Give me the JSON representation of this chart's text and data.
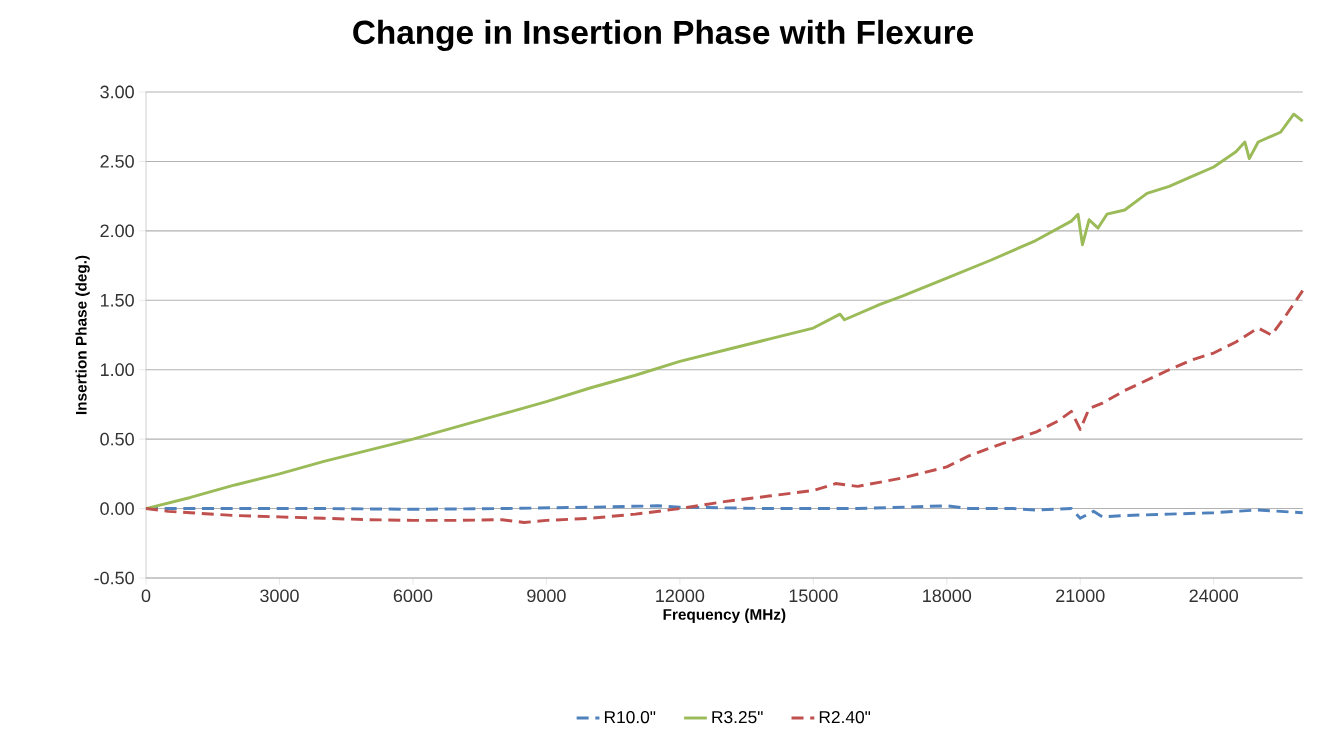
{
  "chart_data": {
    "type": "line",
    "title": "Change in Insertion Phase with Flexure",
    "xlabel": "Frequency (MHz)",
    "ylabel": "Insertion Phase (deg.)",
    "xlim": [
      0,
      26000
    ],
    "xticks": [
      0,
      3000,
      6000,
      9000,
      12000,
      15000,
      18000,
      21000,
      24000
    ],
    "ylim": [
      -0.5,
      3.0
    ],
    "yticks": [
      {
        "value": -0.5,
        "label": "-0.50"
      },
      {
        "value": 0,
        "label": "0.00"
      },
      {
        "value": 0.5,
        "label": "0.50"
      },
      {
        "value": 1.0,
        "label": "1.00"
      },
      {
        "value": 1.5,
        "label": "1.50"
      },
      {
        "value": 2.0,
        "label": "2.00"
      },
      {
        "value": 2.5,
        "label": "2.50"
      },
      {
        "value": 3.0,
        "label": "3.00"
      }
    ],
    "grid": "y",
    "legend": "bottom",
    "series": [
      {
        "name": "R10.0\"",
        "color": "#4f81bd",
        "line_style": "dashed",
        "x": [
          0,
          2000,
          4000,
          6000,
          8000,
          10000,
          11500,
          12000,
          14000,
          16000,
          18000,
          18500,
          19500,
          20000,
          20800,
          21000,
          21300,
          21500,
          22000,
          23000,
          24000,
          25000,
          26000
        ],
        "values": [
          0,
          0.0,
          0.0,
          -0.005,
          0.0,
          0.01,
          0.02,
          0.01,
          0.0,
          0.0,
          0.02,
          0.0,
          0.0,
          -0.01,
          0.0,
          -0.07,
          -0.02,
          -0.06,
          -0.05,
          -0.04,
          -0.03,
          -0.01,
          -0.03
        ]
      },
      {
        "name": "R3.25\"",
        "color": "#9bbb59",
        "line_style": "solid",
        "x": [
          0,
          1000,
          2000,
          3000,
          4000,
          5000,
          6000,
          7000,
          8000,
          9000,
          10000,
          11000,
          12000,
          13000,
          14000,
          15000,
          15600,
          15700,
          16500,
          17000,
          18000,
          19000,
          20000,
          20800,
          20950,
          21050,
          21200,
          21400,
          21600,
          22000,
          22500,
          23000,
          23500,
          24000,
          24500,
          24700,
          24800,
          25000,
          25500,
          25800,
          26000
        ],
        "values": [
          0,
          0.08,
          0.17,
          0.25,
          0.34,
          0.42,
          0.5,
          0.59,
          0.68,
          0.77,
          0.87,
          0.96,
          1.06,
          1.14,
          1.22,
          1.3,
          1.4,
          1.36,
          1.47,
          1.53,
          1.66,
          1.79,
          1.93,
          2.07,
          2.12,
          1.9,
          2.08,
          2.02,
          2.12,
          2.15,
          2.27,
          2.32,
          2.39,
          2.46,
          2.57,
          2.64,
          2.52,
          2.64,
          2.71,
          2.84,
          2.79
        ]
      },
      {
        "name": "R2.40\"",
        "color": "#c0504d",
        "line_style": "dashed",
        "x": [
          0,
          500,
          1000,
          2000,
          3000,
          4000,
          5000,
          6000,
          7000,
          8000,
          8500,
          9000,
          10000,
          11000,
          11500,
          12000,
          13000,
          14000,
          15000,
          15500,
          16000,
          17000,
          18000,
          18500,
          19000,
          20000,
          20500,
          20800,
          21000,
          21200,
          21500,
          22000,
          23000,
          23500,
          24000,
          24500,
          25000,
          25300,
          25600,
          26000
        ],
        "values": [
          0,
          -0.02,
          -0.03,
          -0.05,
          -0.06,
          -0.07,
          -0.08,
          -0.085,
          -0.085,
          -0.08,
          -0.1,
          -0.085,
          -0.07,
          -0.04,
          -0.02,
          0.0,
          0.05,
          0.09,
          0.13,
          0.18,
          0.16,
          0.22,
          0.3,
          0.38,
          0.44,
          0.55,
          0.63,
          0.7,
          0.57,
          0.72,
          0.76,
          0.85,
          1.0,
          1.07,
          1.12,
          1.2,
          1.3,
          1.25,
          1.38,
          1.57
        ]
      }
    ]
  }
}
